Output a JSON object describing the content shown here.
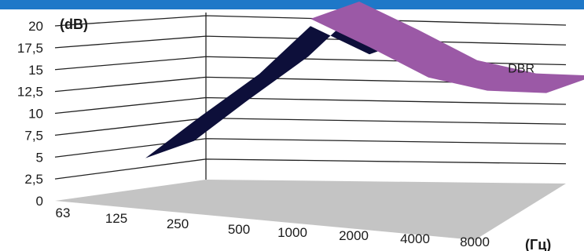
{
  "chart_data": {
    "type": "area",
    "view": "3d",
    "y_unit": "(dB)",
    "x_unit": "(Гц)",
    "ylim": [
      0,
      20
    ],
    "y_ticks": [
      "0",
      "2,5",
      "5",
      "7,5",
      "10",
      "12,5",
      "15",
      "17,5",
      "20"
    ],
    "categories": [
      "63",
      "125",
      "250",
      "500",
      "1000",
      "2000",
      "4000",
      "8000"
    ],
    "series": [
      {
        "name": "",
        "color": "#0d0f3a",
        "values": [
          4.5,
          9,
          14,
          19,
          14,
          null,
          null,
          null
        ]
      },
      {
        "name": "DBR",
        "color": "#9b59a6",
        "values": [
          null,
          null,
          null,
          20,
          15,
          11,
          9.5,
          9.5
        ]
      }
    ]
  }
}
